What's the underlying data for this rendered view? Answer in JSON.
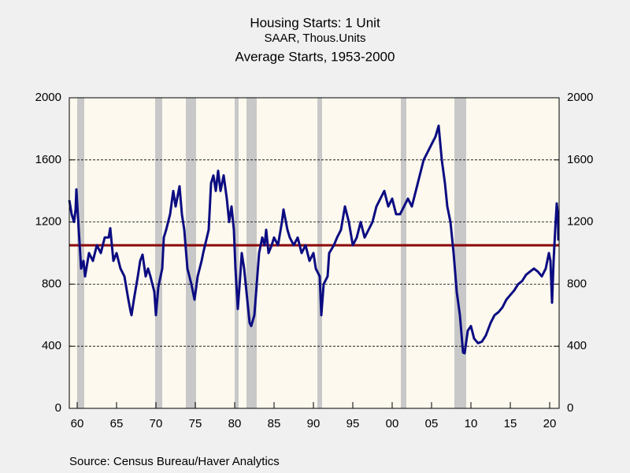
{
  "chart_data": {
    "type": "line",
    "subtitle": "SAAR, Thous.Units",
    "source": "Source:  Census Bureau/Haver Analytics",
    "xlim": [
      1959,
      2021.2
    ],
    "xticks": [
      {
        "value": 1960,
        "label": "60"
      },
      {
        "value": 1965,
        "label": "65"
      },
      {
        "value": 1970,
        "label": "70"
      },
      {
        "value": 1975,
        "label": "75"
      },
      {
        "value": 1980,
        "label": "80"
      },
      {
        "value": 1985,
        "label": "85"
      },
      {
        "value": 1990,
        "label": "90"
      },
      {
        "value": 1995,
        "label": "95"
      },
      {
        "value": 2000,
        "label": "00"
      },
      {
        "value": 2005,
        "label": "05"
      },
      {
        "value": 2010,
        "label": "10"
      },
      {
        "value": 2015,
        "label": "15"
      },
      {
        "value": 2020,
        "label": "20"
      }
    ],
    "ylim": [
      0,
      2000
    ],
    "yticks": [
      0,
      400,
      800,
      1200,
      1600,
      2000
    ],
    "y2lim": [
      0,
      2000
    ],
    "y2ticks": [
      0,
      400,
      800,
      1200,
      1600,
      2000
    ],
    "grid": true,
    "recession_color": "#c8c8c8",
    "recessions": [
      [
        1960.0,
        1960.9
      ],
      [
        1969.9,
        1970.8
      ],
      [
        1973.8,
        1975.1
      ],
      [
        1980.0,
        1980.5
      ],
      [
        1981.5,
        1982.8
      ],
      [
        1990.5,
        1991.1
      ],
      [
        2001.1,
        2001.8
      ],
      [
        2007.9,
        2009.4
      ]
    ],
    "x": [
      1959.0,
      1959.3,
      1959.6,
      1959.8,
      1959.9,
      1960.2,
      1960.5,
      1960.8,
      1961.0,
      1961.5,
      1962.0,
      1962.5,
      1963.0,
      1963.5,
      1964.0,
      1964.2,
      1964.6,
      1965.0,
      1965.5,
      1966.0,
      1966.5,
      1966.8,
      1966.9,
      1967.2,
      1967.7,
      1968.0,
      1968.3,
      1968.7,
      1969.0,
      1969.3,
      1969.8,
      1970.0,
      1970.3,
      1970.8,
      1971.0,
      1971.3,
      1971.8,
      1972.2,
      1972.5,
      1973.0,
      1973.3,
      1973.6,
      1974.0,
      1974.5,
      1974.9,
      1975.3,
      1975.8,
      1976.0,
      1976.7,
      1977.0,
      1977.3,
      1977.6,
      1977.9,
      1978.2,
      1978.6,
      1979.0,
      1979.3,
      1979.6,
      1979.9,
      1980.1,
      1980.4,
      1980.7,
      1980.9,
      1981.2,
      1981.5,
      1981.9,
      1982.1,
      1982.5,
      1982.8,
      1983.1,
      1983.5,
      1983.8,
      1984.0,
      1984.3,
      1984.7,
      1985.0,
      1985.5,
      1986.0,
      1986.2,
      1986.7,
      1987.0,
      1987.5,
      1988.0,
      1988.5,
      1989.0,
      1989.5,
      1990.0,
      1990.3,
      1990.8,
      1991.0,
      1991.3,
      1991.8,
      1992.0,
      1992.6,
      1993.0,
      1993.5,
      1994.0,
      1994.5,
      1995.0,
      1995.5,
      1996.0,
      1996.5,
      1997.0,
      1997.5,
      1998.0,
      1998.5,
      1999.0,
      1999.5,
      2000.0,
      2000.5,
      2001.0,
      2001.5,
      2002.0,
      2002.5,
      2003.0,
      2003.5,
      2004.0,
      2004.5,
      2005.0,
      2005.5,
      2005.9,
      2006.3,
      2006.7,
      2007.0,
      2007.4,
      2007.8,
      2008.2,
      2008.6,
      2009.0,
      2009.2,
      2009.6,
      2010.0,
      2010.4,
      2010.9,
      2011.4,
      2011.9,
      2012.5,
      2013.0,
      2013.5,
      2014.0,
      2014.5,
      2015.0,
      2015.5,
      2016.0,
      2016.5,
      2017.0,
      2017.5,
      2018.0,
      2018.5,
      2019.0,
      2019.5,
      2019.9,
      2020.1,
      2020.3,
      2020.5,
      2020.7,
      2020.9,
      2021.05,
      2021.1
    ],
    "series": [
      {
        "name": "Housing Starts: 1 Unit",
        "color": "#0c0c82",
        "values": [
          1340,
          1250,
          1200,
          1280,
          1410,
          1150,
          900,
          950,
          850,
          1000,
          950,
          1050,
          1000,
          1100,
          1100,
          1160,
          950,
          1000,
          900,
          850,
          700,
          620,
          600,
          700,
          850,
          950,
          990,
          850,
          900,
          850,
          750,
          600,
          780,
          900,
          1100,
          1150,
          1250,
          1400,
          1300,
          1430,
          1250,
          1150,
          900,
          800,
          700,
          850,
          950,
          1000,
          1150,
          1450,
          1500,
          1400,
          1530,
          1400,
          1500,
          1350,
          1200,
          1300,
          1150,
          900,
          640,
          850,
          1000,
          900,
          750,
          550,
          530,
          600,
          800,
          1000,
          1100,
          1050,
          1150,
          1000,
          1050,
          1100,
          1050,
          1200,
          1280,
          1150,
          1100,
          1050,
          1100,
          1000,
          1050,
          950,
          1000,
          900,
          850,
          600,
          800,
          850,
          1000,
          1050,
          1100,
          1150,
          1300,
          1200,
          1050,
          1100,
          1200,
          1100,
          1150,
          1200,
          1300,
          1350,
          1400,
          1300,
          1350,
          1250,
          1250,
          1300,
          1350,
          1300,
          1400,
          1500,
          1600,
          1650,
          1700,
          1750,
          1820,
          1600,
          1450,
          1300,
          1200,
          1000,
          750,
          600,
          360,
          355,
          500,
          530,
          450,
          420,
          430,
          470,
          550,
          600,
          620,
          650,
          700,
          730,
          760,
          800,
          820,
          860,
          880,
          900,
          880,
          850,
          900,
          1000,
          950,
          680,
          950,
          1150,
          1320,
          1240,
          1080
        ]
      }
    ],
    "reference_line": {
      "name": "Average Starts, 1953-2000",
      "value": 1050,
      "color": "#8b0a0a"
    }
  }
}
